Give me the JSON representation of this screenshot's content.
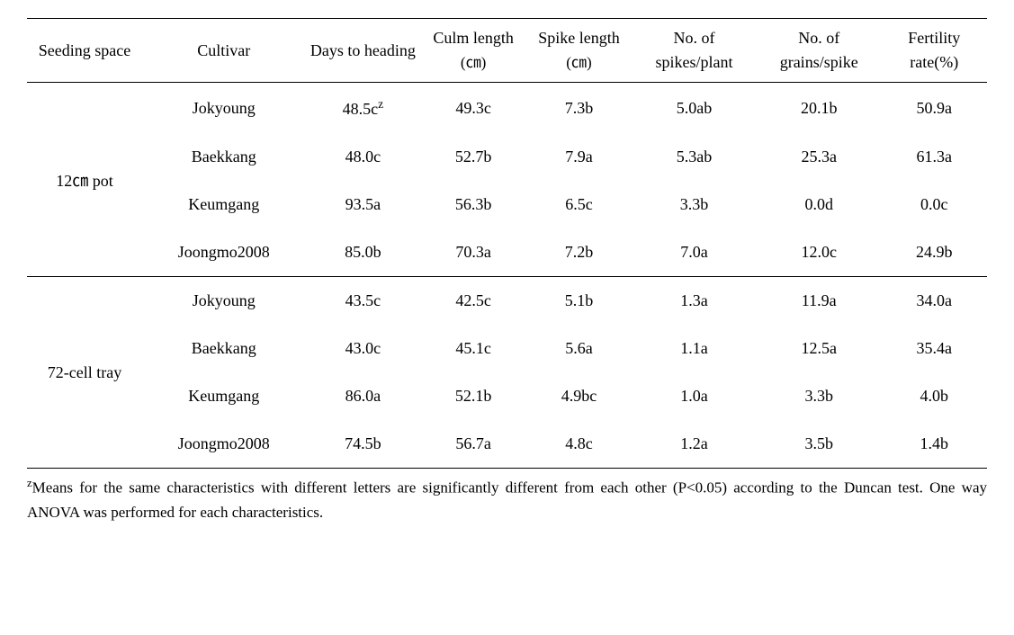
{
  "headers": {
    "seeding_space": "Seeding space",
    "cultivar": "Cultivar",
    "days_to_heading": "Days to heading",
    "culm_length": "Culm length",
    "culm_length_unit": "(㎝)",
    "spike_length": "Spike length",
    "spike_length_unit": "(㎝)",
    "spikes_per_plant": "No. of spikes/plant",
    "grains_per_spike": "No. of grains/spike",
    "fertility_rate": "Fertility rate(%)"
  },
  "groups": [
    {
      "label": "12㎝ pot",
      "rows": [
        {
          "cultivar": "Jokyoung",
          "days": "48.5c",
          "culm": "49.3c",
          "spike": "7.3b",
          "spikes": "5.0ab",
          "grains": "20.1b",
          "fertility": "50.9a",
          "zmark": true
        },
        {
          "cultivar": "Baekkang",
          "days": "48.0c",
          "culm": "52.7b",
          "spike": "7.9a",
          "spikes": "5.3ab",
          "grains": "25.3a",
          "fertility": "61.3a"
        },
        {
          "cultivar": "Keumgang",
          "days": "93.5a",
          "culm": "56.3b",
          "spike": "6.5c",
          "spikes": "3.3b",
          "grains": "0.0d",
          "fertility": "0.0c"
        },
        {
          "cultivar": "Joongmo2008",
          "days": "85.0b",
          "culm": "70.3a",
          "spike": "7.2b",
          "spikes": "7.0a",
          "grains": "12.0c",
          "fertility": "24.9b"
        }
      ]
    },
    {
      "label": "72-cell tray",
      "rows": [
        {
          "cultivar": "Jokyoung",
          "days": "43.5c",
          "culm": "42.5c",
          "spike": "5.1b",
          "spikes": "1.3a",
          "grains": "11.9a",
          "fertility": "34.0a"
        },
        {
          "cultivar": "Baekkang",
          "days": "43.0c",
          "culm": "45.1c",
          "spike": "5.6a",
          "spikes": "1.1a",
          "grains": "12.5a",
          "fertility": "35.4a"
        },
        {
          "cultivar": "Keumgang",
          "days": "86.0a",
          "culm": "52.1b",
          "spike": "4.9bc",
          "spikes": "1.0a",
          "grains": "3.3b",
          "fertility": "4.0b"
        },
        {
          "cultivar": "Joongmo2008",
          "days": "74.5b",
          "culm": "56.7a",
          "spike": "4.8c",
          "spikes": "1.2a",
          "grains": "3.5b",
          "fertility": "1.4b"
        }
      ]
    }
  ],
  "footnote": {
    "marker": "z",
    "text": "Means for the same characteristics with different letters are significantly different from each other (P<0.05) according to the Duncan test. One way ANOVA was performed for each characteristics."
  },
  "column_widths_pct": [
    12,
    17,
    12,
    11,
    11,
    13,
    13,
    11
  ]
}
